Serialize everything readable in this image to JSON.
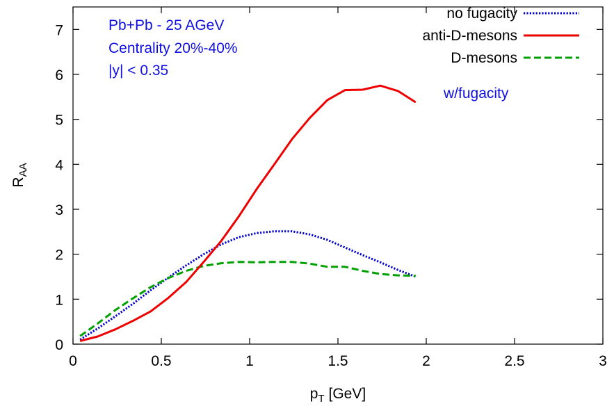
{
  "chart_data": {
    "type": "line",
    "xlabel": "p",
    "xlabel_sub": "T",
    "xlabel_unit": " [GeV]",
    "ylabel": "R",
    "ylabel_sub": "AA",
    "xlim": [
      0,
      3
    ],
    "ylim": [
      0,
      7.5
    ],
    "xticks": [
      0,
      0.5,
      1,
      1.5,
      2,
      2.5,
      3
    ],
    "xtick_labels": [
      "0",
      "0.5",
      "1",
      "1.5",
      "2",
      "2.5",
      "3"
    ],
    "yticks": [
      0,
      1,
      2,
      3,
      4,
      5,
      6,
      7
    ],
    "ytick_labels": [
      "0",
      "1",
      "2",
      "3",
      "4",
      "5",
      "6",
      "7"
    ],
    "grid": false,
    "legend_position": "top-right",
    "annotations": [
      {
        "text": "Pb+Pb - 25 AGeV"
      },
      {
        "text": "Centrality 20%-40%"
      },
      {
        "text": "|y| < 0.35"
      },
      {
        "text": "w/fugacity"
      }
    ],
    "series": [
      {
        "name": "no fugacity",
        "color": "#0000cc",
        "style": "dotted",
        "x": [
          0.04,
          0.14,
          0.24,
          0.34,
          0.44,
          0.54,
          0.64,
          0.74,
          0.84,
          0.94,
          1.04,
          1.14,
          1.24,
          1.34,
          1.44,
          1.54,
          1.64,
          1.74,
          1.84,
          1.94
        ],
        "y": [
          0.1,
          0.35,
          0.62,
          0.9,
          1.2,
          1.48,
          1.75,
          2.0,
          2.22,
          2.38,
          2.47,
          2.51,
          2.51,
          2.44,
          2.32,
          2.15,
          1.98,
          1.82,
          1.65,
          1.5
        ]
      },
      {
        "name": "anti-D-mesons",
        "color": "#ee0000",
        "style": "solid",
        "x": [
          0.04,
          0.14,
          0.24,
          0.34,
          0.44,
          0.54,
          0.64,
          0.74,
          0.84,
          0.94,
          1.04,
          1.14,
          1.24,
          1.34,
          1.44,
          1.54,
          1.64,
          1.74,
          1.84,
          1.94
        ],
        "y": [
          0.07,
          0.17,
          0.33,
          0.52,
          0.73,
          1.03,
          1.38,
          1.83,
          2.3,
          2.85,
          3.45,
          4.0,
          4.56,
          5.03,
          5.43,
          5.65,
          5.66,
          5.75,
          5.63,
          5.38
        ]
      },
      {
        "name": "D-mesons",
        "color": "#00a000",
        "style": "dashed",
        "x": [
          0.04,
          0.14,
          0.24,
          0.34,
          0.44,
          0.54,
          0.64,
          0.74,
          0.84,
          0.94,
          1.04,
          1.14,
          1.24,
          1.34,
          1.44,
          1.54,
          1.64,
          1.74,
          1.84,
          1.94
        ],
        "y": [
          0.18,
          0.46,
          0.76,
          1.02,
          1.27,
          1.47,
          1.63,
          1.74,
          1.8,
          1.83,
          1.82,
          1.83,
          1.83,
          1.79,
          1.72,
          1.72,
          1.63,
          1.56,
          1.53,
          1.52
        ]
      }
    ]
  }
}
